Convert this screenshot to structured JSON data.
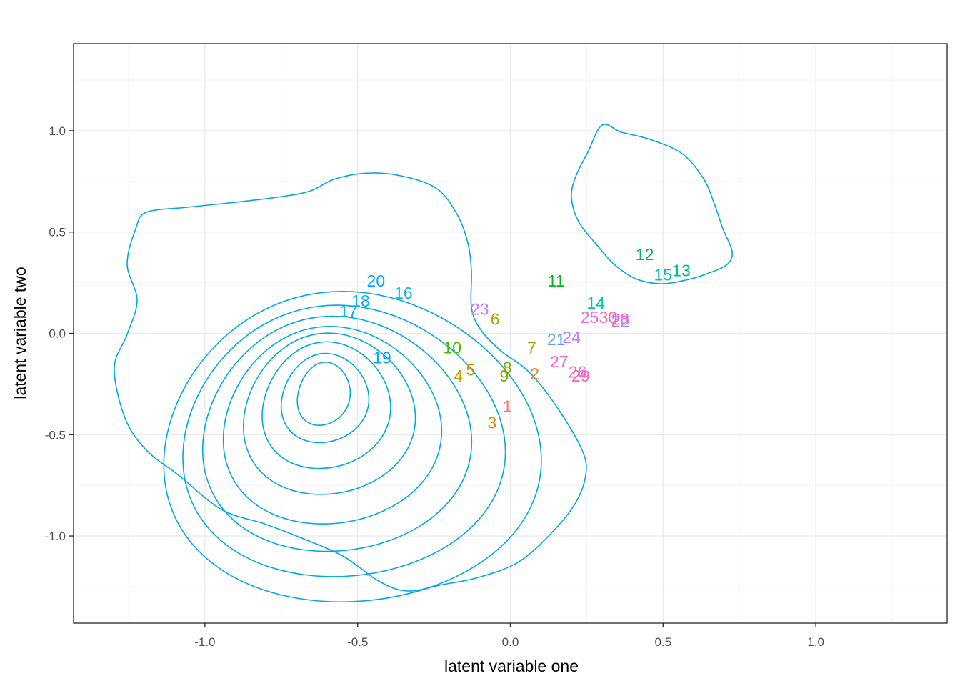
{
  "chart_data": {
    "type": "scatter",
    "xlabel": "latent variable one",
    "ylabel": "latent variable two",
    "xlim": [
      -1.43,
      1.43
    ],
    "ylim": [
      -1.43,
      1.43
    ],
    "x_ticks": [
      -1.0,
      -0.5,
      0.0,
      0.5,
      1.0
    ],
    "x_tick_labels": [
      "-1.0",
      "-0.5",
      "0.0",
      "0.5",
      "1.0"
    ],
    "y_ticks": [
      -1.0,
      -0.5,
      0.0,
      0.5,
      1.0
    ],
    "y_tick_labels": [
      "-1.0",
      "-0.5",
      "0.0",
      "0.5",
      "1.0"
    ],
    "grid": true,
    "legend": "none",
    "contour_color": "#00a9e0",
    "points": [
      {
        "label": "1",
        "x": -0.01,
        "y": -0.36,
        "color": "#f8766d"
      },
      {
        "label": "2",
        "x": 0.08,
        "y": -0.2,
        "color": "#ec8239"
      },
      {
        "label": "3",
        "x": -0.06,
        "y": -0.44,
        "color": "#dc8d00"
      },
      {
        "label": "4",
        "x": -0.17,
        "y": -0.21,
        "color": "#c99800"
      },
      {
        "label": "5",
        "x": -0.13,
        "y": -0.18,
        "color": "#c99800"
      },
      {
        "label": "6",
        "x": -0.05,
        "y": 0.07,
        "color": "#b3a000"
      },
      {
        "label": "7",
        "x": 0.07,
        "y": -0.07,
        "color": "#99a800"
      },
      {
        "label": "8",
        "x": -0.01,
        "y": -0.17,
        "color": "#7cae00"
      },
      {
        "label": "9",
        "x": -0.02,
        "y": -0.21,
        "color": "#7cae00"
      },
      {
        "label": "10",
        "x": -0.19,
        "y": -0.07,
        "color": "#53b400"
      },
      {
        "label": "11",
        "x": 0.15,
        "y": 0.26,
        "color": "#00b81f"
      },
      {
        "label": "12",
        "x": 0.44,
        "y": 0.39,
        "color": "#00bb4e"
      },
      {
        "label": "13",
        "x": 0.56,
        "y": 0.31,
        "color": "#00bf7d"
      },
      {
        "label": "14",
        "x": 0.28,
        "y": 0.15,
        "color": "#00c1a3"
      },
      {
        "label": "15",
        "x": 0.5,
        "y": 0.29,
        "color": "#00c0b8"
      },
      {
        "label": "16",
        "x": -0.35,
        "y": 0.2,
        "color": "#00bcd5"
      },
      {
        "label": "17",
        "x": -0.53,
        "y": 0.11,
        "color": "#00b8e5"
      },
      {
        "label": "18",
        "x": -0.49,
        "y": 0.16,
        "color": "#00b2f3"
      },
      {
        "label": "19",
        "x": -0.42,
        "y": -0.12,
        "color": "#00a9ff"
      },
      {
        "label": "20",
        "x": -0.44,
        "y": 0.26,
        "color": "#00a9ff"
      },
      {
        "label": "21",
        "x": 0.15,
        "y": -0.03,
        "color": "#619cff"
      },
      {
        "label": "22",
        "x": 0.36,
        "y": 0.06,
        "color": "#a58aff"
      },
      {
        "label": "23",
        "x": -0.1,
        "y": 0.12,
        "color": "#c77cff"
      },
      {
        "label": "24",
        "x": 0.2,
        "y": -0.02,
        "color": "#c77cff"
      },
      {
        "label": "25",
        "x": 0.26,
        "y": 0.08,
        "color": "#e76bf3"
      },
      {
        "label": "26",
        "x": 0.22,
        "y": -0.19,
        "color": "#f564e3"
      },
      {
        "label": "27",
        "x": 0.16,
        "y": -0.14,
        "color": "#fa62db"
      },
      {
        "label": "28",
        "x": 0.36,
        "y": 0.07,
        "color": "#fe61cf"
      },
      {
        "label": "29",
        "x": 0.23,
        "y": -0.21,
        "color": "#ff62bc"
      },
      {
        "label": "30",
        "x": 0.32,
        "y": 0.08,
        "color": "#ff65ac"
      }
    ]
  }
}
